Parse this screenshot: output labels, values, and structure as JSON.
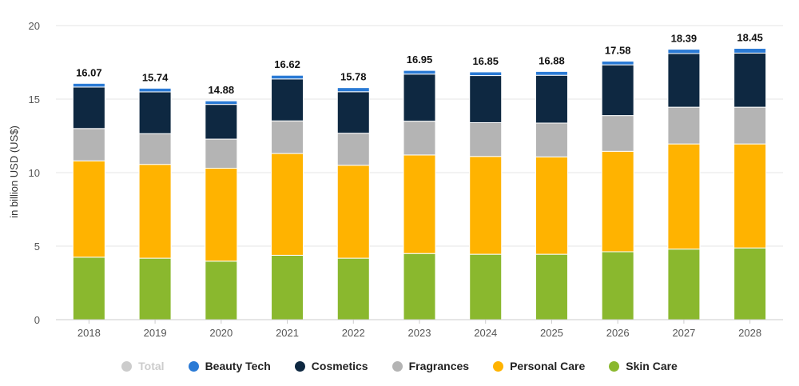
{
  "chart_data": {
    "type": "bar",
    "stacked": true,
    "title": "",
    "xlabel": "",
    "ylabel": "in billion USD (US$)",
    "ylim": [
      0,
      20
    ],
    "yticks": [
      0,
      5,
      10,
      15,
      20
    ],
    "grid": true,
    "legend_position": "bottom-center",
    "categories": [
      "2018",
      "2019",
      "2020",
      "2021",
      "2022",
      "2023",
      "2024",
      "2025",
      "2026",
      "2027",
      "2028"
    ],
    "series": [
      {
        "name": "Skin Care",
        "color": "#8ab82e",
        "values": [
          4.25,
          4.18,
          3.98,
          4.38,
          4.18,
          4.5,
          4.45,
          4.45,
          4.62,
          4.8,
          4.88
        ]
      },
      {
        "name": "Personal Care",
        "color": "#ffb300",
        "values": [
          6.55,
          6.38,
          6.32,
          6.92,
          6.32,
          6.7,
          6.65,
          6.62,
          6.83,
          7.15,
          7.07
        ]
      },
      {
        "name": "Fragrances",
        "color": "#b4b4b4",
        "values": [
          2.2,
          2.09,
          1.98,
          2.22,
          2.18,
          2.3,
          2.3,
          2.3,
          2.43,
          2.5,
          2.5
        ]
      },
      {
        "name": "Cosmetics",
        "color": "#0e2841",
        "values": [
          2.82,
          2.84,
          2.36,
          2.85,
          2.82,
          3.2,
          3.2,
          3.25,
          3.45,
          3.65,
          3.68
        ]
      },
      {
        "name": "Beauty Tech",
        "color": "#2a7ad5",
        "values": [
          0.25,
          0.25,
          0.24,
          0.25,
          0.28,
          0.25,
          0.25,
          0.26,
          0.25,
          0.29,
          0.32
        ]
      }
    ],
    "totals": [
      "16.07",
      "15.74",
      "14.88",
      "16.62",
      "15.78",
      "16.95",
      "16.85",
      "16.88",
      "17.58",
      "18.39",
      "18.45"
    ]
  },
  "legend": [
    {
      "label": "Total",
      "color": "#cccccc",
      "active": false
    },
    {
      "label": "Beauty Tech",
      "color": "#2a7ad5",
      "active": true
    },
    {
      "label": "Cosmetics",
      "color": "#0e2841",
      "active": true
    },
    {
      "label": "Fragrances",
      "color": "#b4b4b4",
      "active": true
    },
    {
      "label": "Personal Care",
      "color": "#ffb300",
      "active": true
    },
    {
      "label": "Skin Care",
      "color": "#8ab82e",
      "active": true
    }
  ]
}
